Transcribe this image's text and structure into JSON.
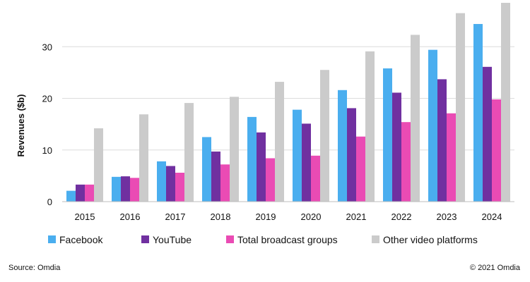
{
  "chart_data": {
    "type": "bar",
    "categories": [
      "2015",
      "2016",
      "2017",
      "2018",
      "2019",
      "2020",
      "2021",
      "2022",
      "2023",
      "2024"
    ],
    "series": [
      {
        "name": "Facebook",
        "color": "#4aaeef",
        "values": [
          2.1,
          4.8,
          7.8,
          12.5,
          16.4,
          17.8,
          21.6,
          25.8,
          29.4,
          34.4
        ]
      },
      {
        "name": "YouTube",
        "color": "#7030a0",
        "values": [
          3.3,
          4.9,
          6.9,
          9.7,
          13.4,
          15.1,
          18.1,
          21.1,
          23.7,
          26.1
        ]
      },
      {
        "name": "Total broadcast groups",
        "color": "#ea4bb4",
        "values": [
          3.3,
          4.6,
          5.6,
          7.2,
          8.4,
          8.9,
          12.6,
          15.4,
          17.1,
          19.8
        ]
      },
      {
        "name": "Other video platforms",
        "color": "#cbcbcb",
        "values": [
          14.2,
          16.9,
          19.1,
          20.3,
          23.2,
          25.5,
          29.1,
          32.3,
          36.5,
          38.5
        ]
      }
    ],
    "ylabel": "Revenues ($b)",
    "yticks": [
      0,
      10,
      20,
      30
    ],
    "ylim": [
      0,
      38.5
    ],
    "grid": true,
    "legend_position": "bottom"
  },
  "footer": {
    "source": "Source: Omdia",
    "copyright": "© 2021 Omdia"
  }
}
